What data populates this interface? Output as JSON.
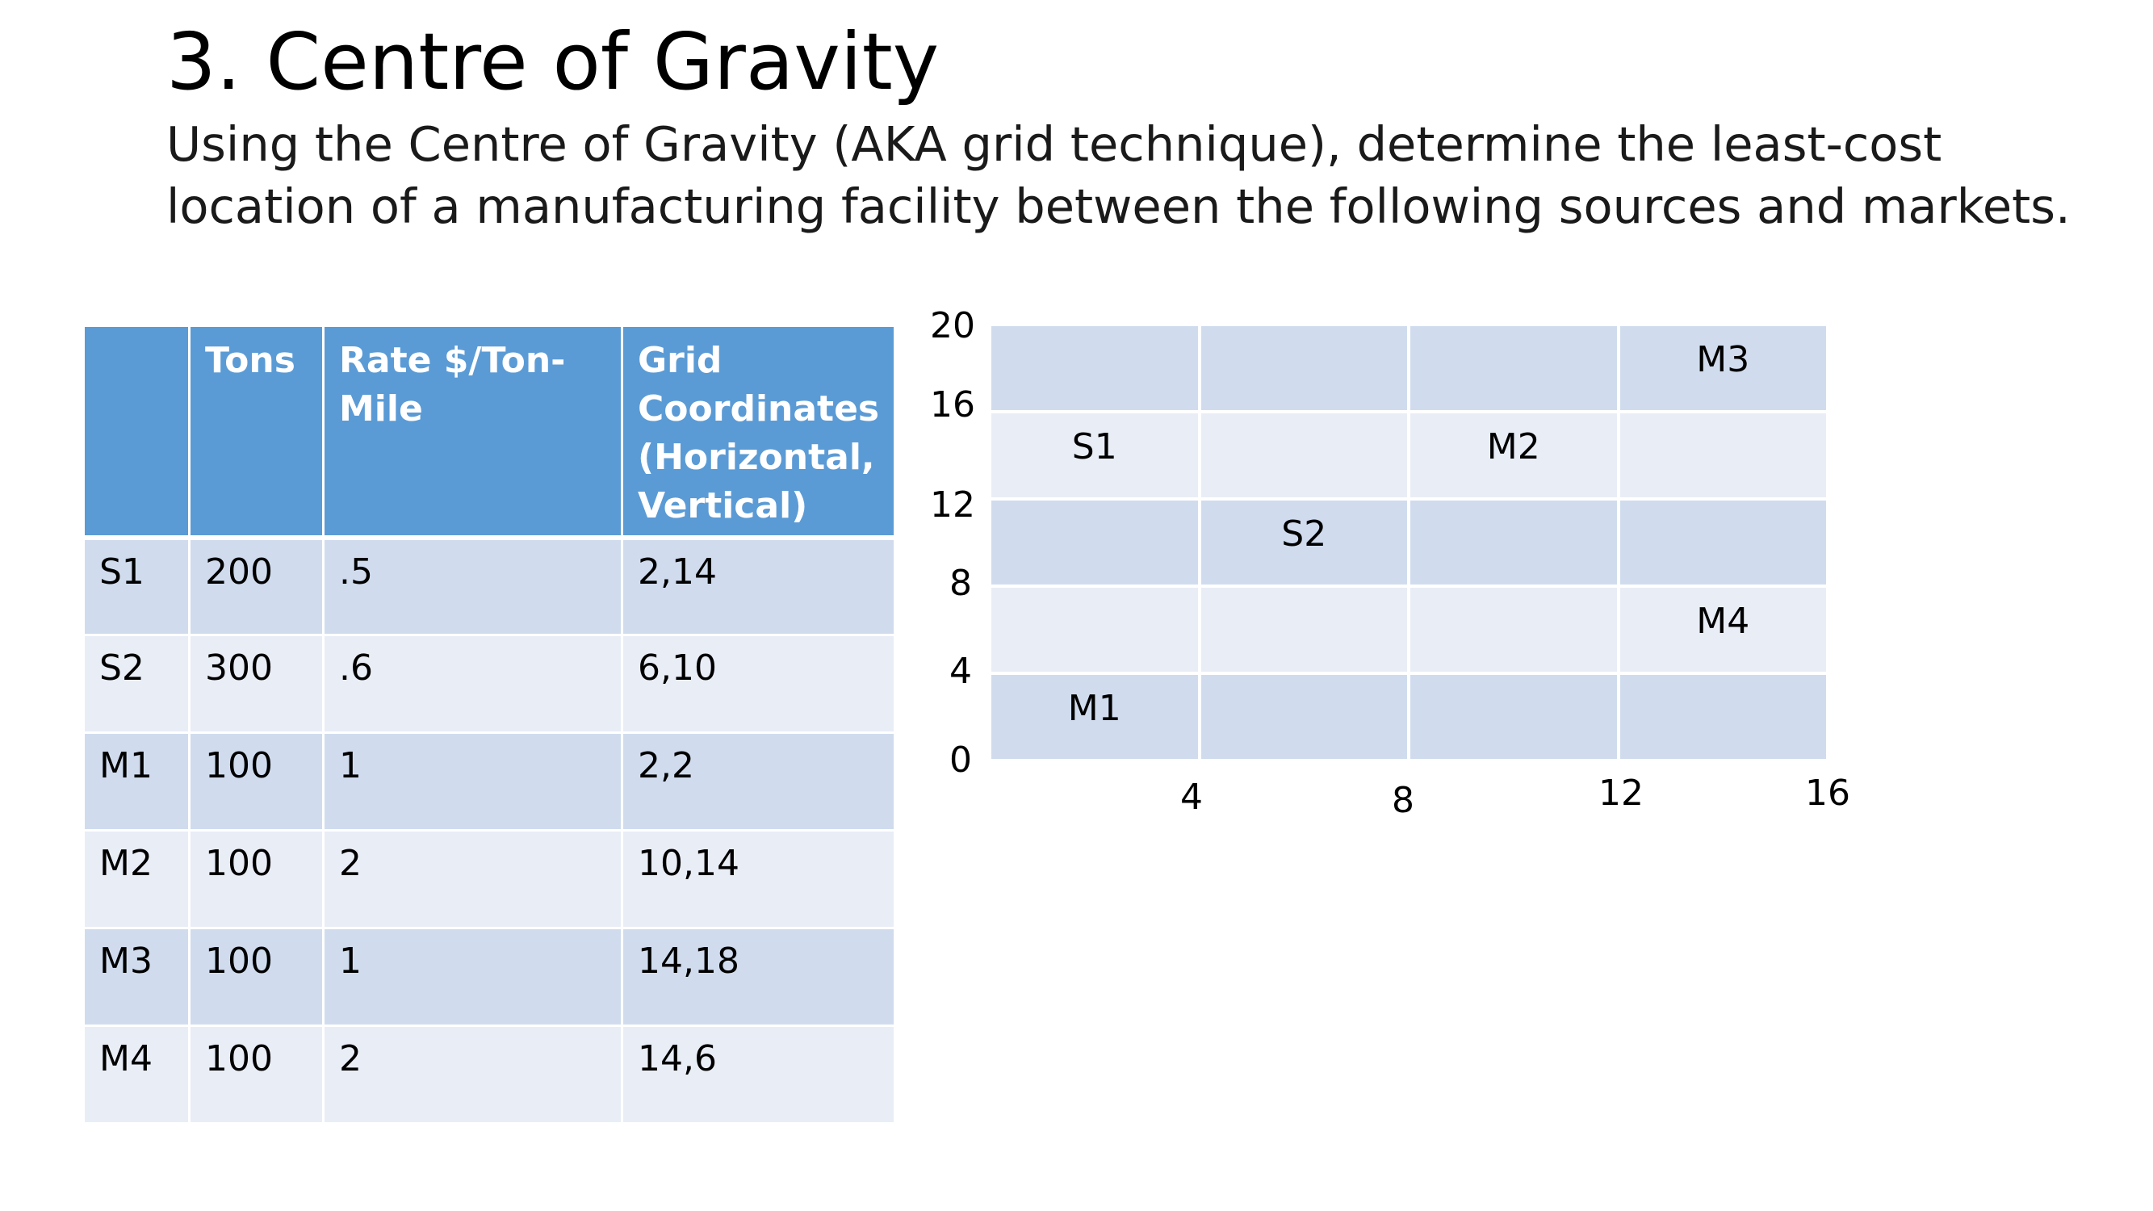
{
  "title": "3. Centre of Gravity",
  "subtitle": {
    "line1": "Using the Centre of Gravity (AKA grid technique), determine the least-cost",
    "line2": "location of a manufacturing facility between the following sources and markets."
  },
  "table": {
    "headers": [
      "",
      "Tons",
      "Rate $/Ton-Mile",
      "Grid Coordinates (Horizontal, Vertical)"
    ],
    "header_lines": {
      "rate": [
        "Rate $/Ton-",
        "Mile"
      ],
      "grid": [
        "Grid",
        "Coordinates",
        "(Horizontal,",
        "Vertical)"
      ]
    },
    "rows": [
      {
        "id": "S1",
        "tons": "200",
        "rate": ".5",
        "coords": "2,14"
      },
      {
        "id": "S2",
        "tons": "300",
        "rate": ".6",
        "coords": "6,10"
      },
      {
        "id": "M1",
        "tons": "100",
        "rate": "1",
        "coords": "2,2"
      },
      {
        "id": "M2",
        "tons": "100",
        "rate": "2",
        "coords": "10,14"
      },
      {
        "id": "M3",
        "tons": "100",
        "rate": "1",
        "coords": "14,18"
      },
      {
        "id": "M4",
        "tons": "100",
        "rate": "2",
        "coords": "14,6"
      }
    ]
  },
  "grid": {
    "y_ticks": [
      "20",
      "16",
      "12",
      "8",
      "4",
      "0"
    ],
    "x_ticks": [
      "4",
      "8",
      "12",
      "16"
    ],
    "cells": [
      [
        "",
        "",
        "",
        "M3"
      ],
      [
        "S1",
        "",
        "M2",
        ""
      ],
      [
        "",
        "S2",
        "",
        ""
      ],
      [
        "",
        "",
        "",
        "M4"
      ],
      [
        "M1",
        "",
        "",
        ""
      ]
    ]
  },
  "colors": {
    "header_blue": "#5b9bd5",
    "band_dark": "#d0dcee",
    "band_light": "#e9edf6"
  }
}
